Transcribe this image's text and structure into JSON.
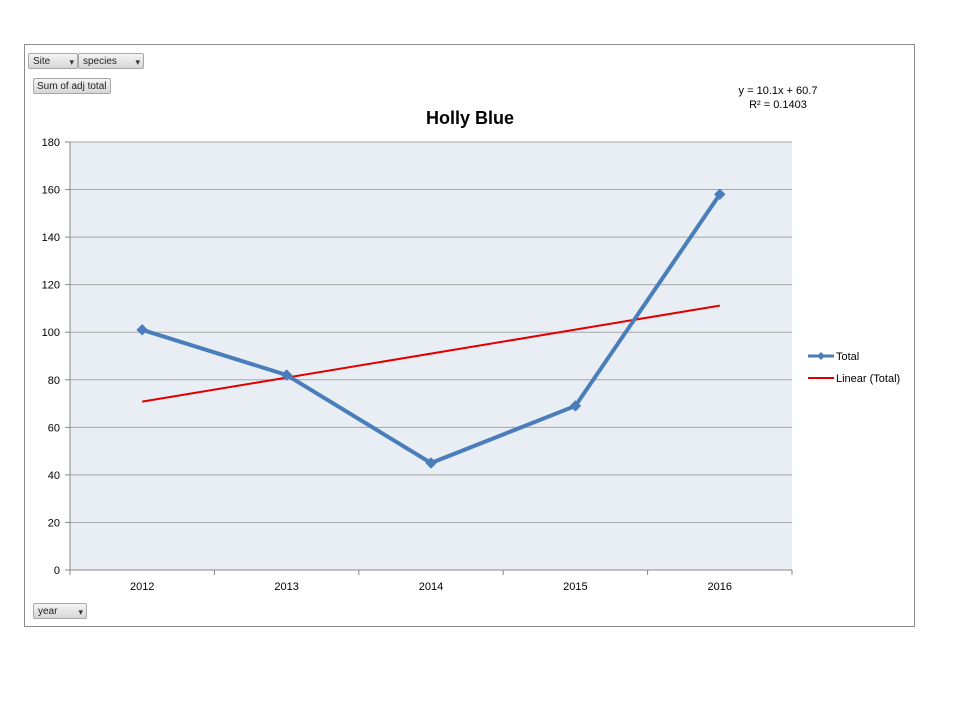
{
  "pivot_fields": {
    "site": "Site",
    "species": "species",
    "value_field": "Sum of adj total",
    "axis_field": "year"
  },
  "trendline": {
    "equation": "y = 10.1x + 60.7",
    "r_squared": "R² = 0.1403"
  },
  "colors": {
    "series": "#4a7ebb",
    "trend": "#e00000",
    "plot_bg": "#e9edf4",
    "grid": "#a6a6a6"
  },
  "chart_data": {
    "type": "line",
    "title": "Holly Blue",
    "categories": [
      "2012",
      "2013",
      "2014",
      "2015",
      "2016"
    ],
    "series": [
      {
        "name": "Total",
        "values": [
          101,
          82,
          45,
          69,
          158
        ]
      }
    ],
    "trend_series": {
      "name": "Linear (Total)",
      "slope": 10.1,
      "intercept": 60.7
    },
    "ylim": [
      0,
      180
    ],
    "yticks": [
      0,
      20,
      40,
      60,
      80,
      100,
      120,
      140,
      160,
      180
    ],
    "grid": true,
    "legend_position": "right"
  }
}
